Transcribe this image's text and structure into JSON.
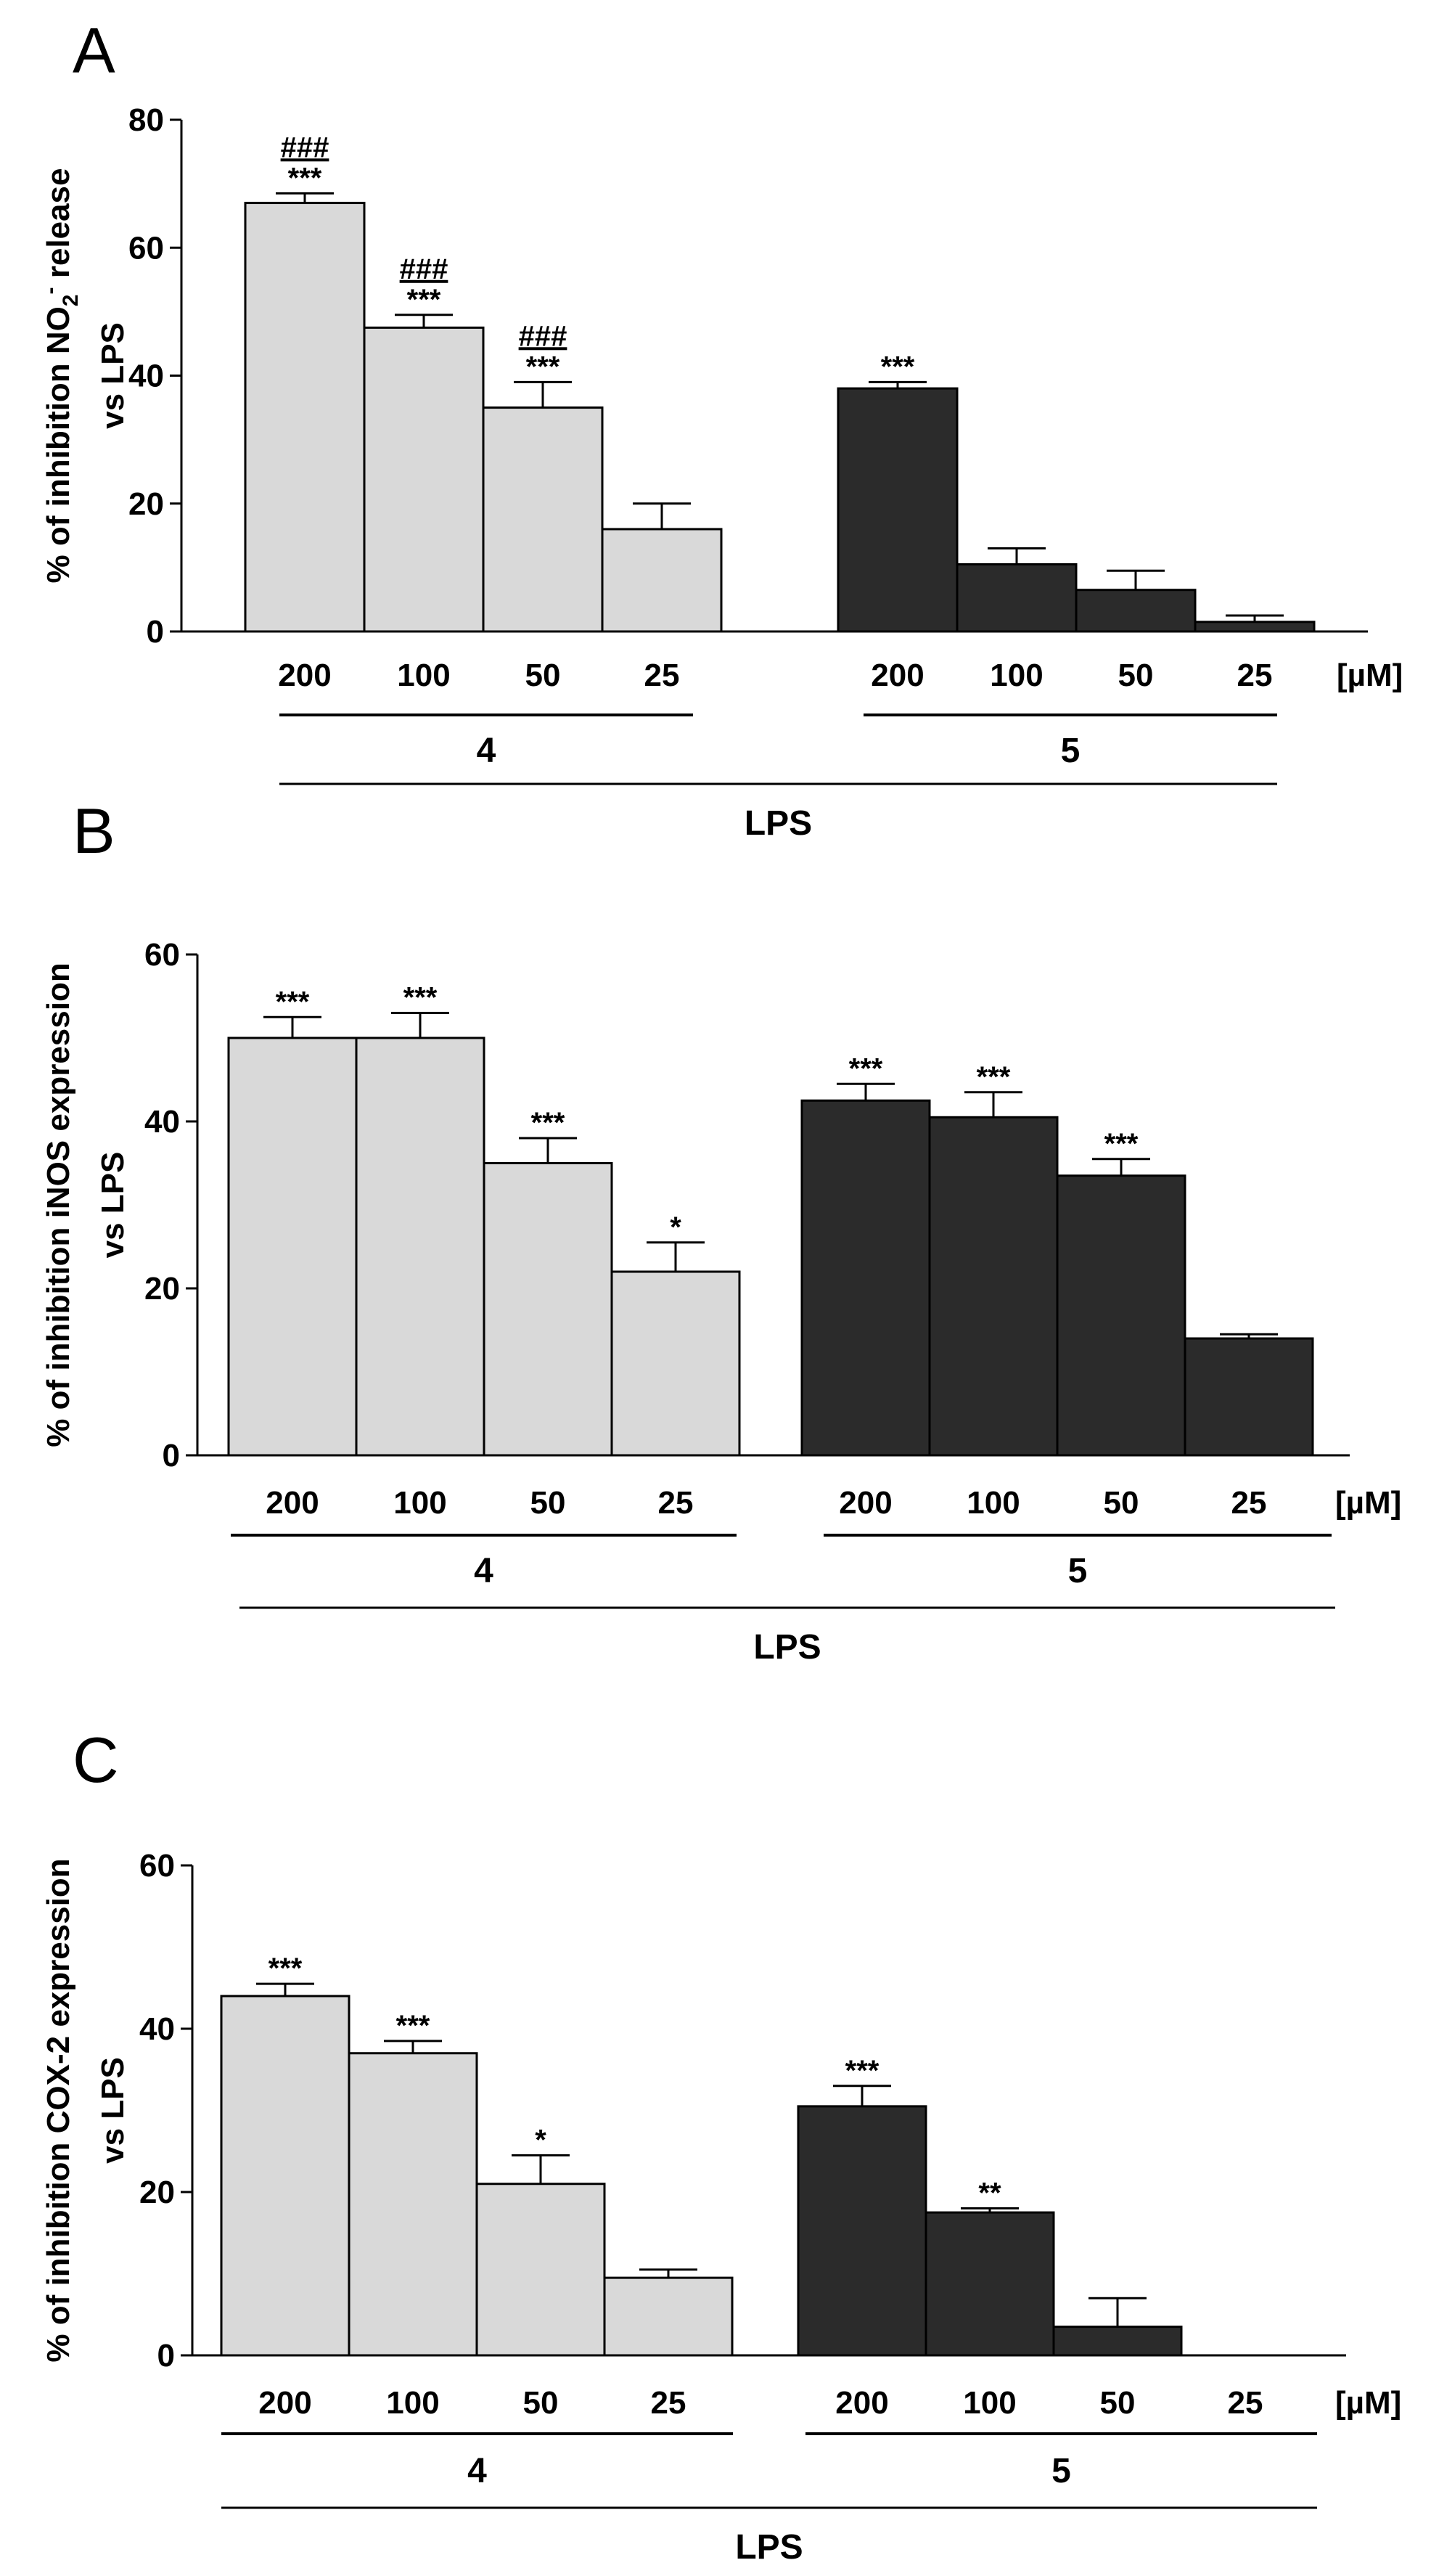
{
  "chart_data": [
    {
      "type": "bar",
      "panel": "A",
      "ylabel_line1": "% of inhibition NO",
      "ylabel_sub": "2",
      "ylabel_sup": "-",
      "ylabel_line1_end": " release",
      "ylabel_line2": "vs LPS",
      "ylim": [
        0,
        80
      ],
      "yticks": [
        "0",
        "20",
        "40",
        "60",
        "80"
      ],
      "unit": "[µM]",
      "lps_label": "LPS",
      "groups": [
        {
          "name": "4",
          "color": "#d9d9d9",
          "categories": [
            "200",
            "100",
            "50",
            "25"
          ],
          "values": [
            67,
            47.5,
            35,
            16
          ],
          "errors": [
            1.5,
            2,
            4,
            4
          ],
          "sig": [
            "***",
            "***",
            "***",
            ""
          ],
          "hash": [
            "###",
            "###",
            "###",
            ""
          ]
        },
        {
          "name": "5",
          "color": "#2b2b2b",
          "categories": [
            "200",
            "100",
            "50",
            "25"
          ],
          "values": [
            38,
            10.5,
            6.5,
            1.5
          ],
          "errors": [
            1,
            2.5,
            3,
            1
          ],
          "sig": [
            "***",
            "",
            "",
            ""
          ],
          "hash": [
            "",
            "",
            "",
            ""
          ]
        }
      ]
    },
    {
      "type": "bar",
      "panel": "B",
      "ylabel_line1": "% of inhibition iNOS expression",
      "ylabel_line2": "vs LPS",
      "ylim": [
        0,
        60
      ],
      "yticks": [
        "0",
        "20",
        "40",
        "60"
      ],
      "unit": "[µM]",
      "lps_label": "LPS",
      "groups": [
        {
          "name": "4",
          "color": "#d9d9d9",
          "categories": [
            "200",
            "100",
            "50",
            "25"
          ],
          "values": [
            50,
            50,
            35,
            22
          ],
          "errors": [
            2.5,
            3,
            3,
            3.5
          ],
          "sig": [
            "***",
            "***",
            "***",
            "*"
          ]
        },
        {
          "name": "5",
          "color": "#2b2b2b",
          "categories": [
            "200",
            "100",
            "50",
            "25"
          ],
          "values": [
            42.5,
            40.5,
            33.5,
            14
          ],
          "errors": [
            2,
            3,
            2,
            0.5
          ],
          "sig": [
            "***",
            "***",
            "***",
            ""
          ]
        }
      ]
    },
    {
      "type": "bar",
      "panel": "C",
      "ylabel_line1": "% of inhibition COX-2 expression",
      "ylabel_line2": "vs LPS",
      "ylim": [
        0,
        60
      ],
      "yticks": [
        "0",
        "20",
        "40",
        "60"
      ],
      "unit": "[µM]",
      "lps_label": "LPS",
      "groups": [
        {
          "name": "4",
          "color": "#d9d9d9",
          "categories": [
            "200",
            "100",
            "50",
            "25"
          ],
          "values": [
            44,
            37,
            21,
            9.5
          ],
          "errors": [
            1.5,
            1.5,
            3.5,
            1
          ],
          "sig": [
            "***",
            "***",
            "*",
            ""
          ]
        },
        {
          "name": "5",
          "color": "#2b2b2b",
          "categories": [
            "200",
            "100",
            "50",
            "25"
          ],
          "values": [
            30.5,
            17.5,
            3.5,
            0
          ],
          "errors": [
            2.5,
            0.5,
            3.5,
            0
          ],
          "sig": [
            "***",
            "**",
            "",
            ""
          ]
        }
      ]
    }
  ]
}
